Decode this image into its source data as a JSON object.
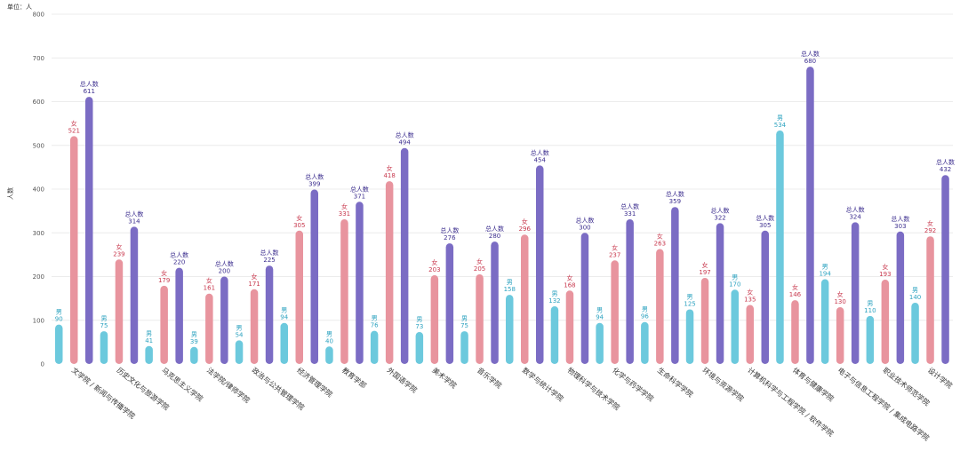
{
  "chart_data": {
    "type": "bar",
    "title": "",
    "unit_label": "单位：人",
    "y_axis_label": "人数",
    "ylim": [
      0,
      800
    ],
    "yticks": [
      0,
      100,
      200,
      300,
      400,
      500,
      600,
      700,
      800
    ],
    "grid": true,
    "categories": [
      "文学院 / 新闻与传播学院",
      "历史文化与旅游学院",
      "马克思主义学院",
      "法学院/律师学院",
      "政治与公共管理学院",
      "经济管理学院",
      "教育学部",
      "外国语学院",
      "美术学院",
      "音乐学院",
      "数学与统计学院",
      "物理科学与技术学院",
      "化学与药学学院",
      "生命科学学院",
      "环境与资源学院",
      "计算机科学与工程学院 / 软件学院",
      "体育与健康学院",
      "电子与信息工程学院 / 集成电路学院",
      "职业技术师范学院",
      "设计学院"
    ],
    "series": [
      {
        "name": "男",
        "color": "#6cc9dd",
        "label_color": "#2ea3c0",
        "values": [
          90,
          75,
          41,
          39,
          54,
          94,
          40,
          76,
          73,
          75,
          158,
          132,
          94,
          96,
          125,
          170,
          534,
          194,
          110,
          140
        ]
      },
      {
        "name": "女",
        "color": "#e8949e",
        "label_color": "#c8394e",
        "values": [
          521,
          239,
          179,
          161,
          171,
          305,
          331,
          418,
          203,
          205,
          296,
          168,
          237,
          263,
          197,
          135,
          146,
          130,
          193,
          292
        ]
      },
      {
        "name": "总人数",
        "color": "#7b6cc4",
        "label_color": "#3d2f8f",
        "values": [
          611,
          314,
          220,
          200,
          225,
          399,
          371,
          494,
          276,
          280,
          454,
          300,
          331,
          359,
          322,
          305,
          680,
          324,
          303,
          432
        ]
      }
    ],
    "xlabel": "",
    "ylabel": "人数"
  }
}
